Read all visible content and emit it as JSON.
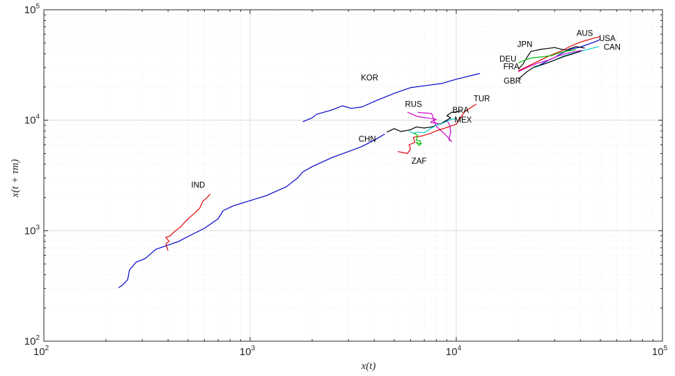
{
  "chart_data": {
    "type": "line",
    "xscale": "log",
    "yscale": "log",
    "xlim": [
      100,
      100000
    ],
    "ylim": [
      100,
      100000
    ],
    "grid": true,
    "minor_grid": true,
    "xlabel": "x(t)",
    "ylabel": "x(t + τm)",
    "x_ticks": [
      {
        "base": "10",
        "exp": "2",
        "value": 100
      },
      {
        "base": "10",
        "exp": "3",
        "value": 1000
      },
      {
        "base": "10",
        "exp": "4",
        "value": 10000
      },
      {
        "base": "10",
        "exp": "5",
        "value": 100000
      }
    ],
    "y_ticks": [
      {
        "base": "10",
        "exp": "2",
        "value": 100
      },
      {
        "base": "10",
        "exp": "3",
        "value": 1000
      },
      {
        "base": "10",
        "exp": "4",
        "value": 10000
      },
      {
        "base": "10",
        "exp": "5",
        "value": 100000
      }
    ],
    "series": [
      {
        "name": "CHN",
        "color": "#0000cc",
        "label_at": [
          3700,
          6400
        ],
        "points": [
          [
            230,
            305
          ],
          [
            240,
            320
          ],
          [
            255,
            360
          ],
          [
            260,
            440
          ],
          [
            280,
            520
          ],
          [
            310,
            560
          ],
          [
            350,
            680
          ],
          [
            400,
            740
          ],
          [
            450,
            800
          ],
          [
            520,
            920
          ],
          [
            600,
            1050
          ],
          [
            700,
            1280
          ],
          [
            740,
            1520
          ],
          [
            830,
            1680
          ],
          [
            1000,
            1870
          ],
          [
            1200,
            2080
          ],
          [
            1500,
            2500
          ],
          [
            1700,
            3000
          ],
          [
            1800,
            3400
          ],
          [
            2000,
            3800
          ],
          [
            2500,
            4600
          ],
          [
            3000,
            5200
          ],
          [
            3500,
            5800
          ],
          [
            4000,
            6600
          ],
          [
            4500,
            7500
          ]
        ]
      },
      {
        "name": "KOR",
        "color": "#0000cc",
        "label_at": [
          3800,
          23000
        ],
        "points": [
          [
            1800,
            9700
          ],
          [
            2000,
            10500
          ],
          [
            2100,
            11300
          ],
          [
            2500,
            12400
          ],
          [
            2800,
            13500
          ],
          [
            3100,
            12800
          ],
          [
            3500,
            13200
          ],
          [
            4000,
            14800
          ],
          [
            5000,
            17500
          ],
          [
            6000,
            19700
          ],
          [
            7000,
            20500
          ],
          [
            8500,
            21500
          ],
          [
            10000,
            23500
          ],
          [
            13000,
            26500
          ]
        ]
      },
      {
        "name": "IND",
        "color": "#dd0000",
        "label_at": [
          560,
          2450
        ],
        "points": [
          [
            400,
            660
          ],
          [
            390,
            760
          ],
          [
            405,
            800
          ],
          [
            390,
            870
          ],
          [
            410,
            900
          ],
          [
            430,
            980
          ],
          [
            460,
            1080
          ],
          [
            480,
            1180
          ],
          [
            510,
            1320
          ],
          [
            540,
            1450
          ],
          [
            570,
            1600
          ],
          [
            590,
            1850
          ],
          [
            620,
            2000
          ],
          [
            640,
            2150
          ]
        ]
      },
      {
        "name": "RUS",
        "color": "#cc00cc",
        "label_at": [
          6200,
          13200
        ],
        "points": [
          [
            5800,
            11800
          ],
          [
            6500,
            10800
          ],
          [
            7200,
            10500
          ],
          [
            8000,
            10200
          ],
          [
            7500,
            9600
          ],
          [
            8400,
            9200
          ],
          [
            9000,
            10000
          ],
          [
            9300,
            9000
          ],
          [
            9400,
            7800
          ],
          [
            9200,
            6700
          ],
          [
            9500,
            6400
          ],
          [
            8800,
            7500
          ],
          [
            8000,
            8800
          ],
          [
            7600,
            11500
          ],
          [
            6500,
            11800
          ]
        ]
      },
      {
        "name": "TUR",
        "color": "#dd0000",
        "label_at": [
          13300,
          14800
        ],
        "points": [
          [
            5200,
            5200
          ],
          [
            5800,
            5000
          ],
          [
            6000,
            5500
          ],
          [
            5900,
            6000
          ],
          [
            6300,
            6300
          ],
          [
            6200,
            7000
          ],
          [
            6800,
            7200
          ],
          [
            7500,
            7600
          ],
          [
            8000,
            8000
          ],
          [
            9000,
            8600
          ],
          [
            10000,
            9200
          ],
          [
            10500,
            10500
          ],
          [
            11000,
            12000
          ],
          [
            12500,
            14000
          ]
        ]
      },
      {
        "name": "BRA",
        "color": "#000000",
        "label_at": [
          10500,
          11700
        ],
        "points": [
          [
            4600,
            7800
          ],
          [
            5000,
            8400
          ],
          [
            5400,
            7900
          ],
          [
            6000,
            8200
          ],
          [
            6400,
            8700
          ],
          [
            7000,
            8500
          ],
          [
            7600,
            8700
          ],
          [
            8500,
            9400
          ],
          [
            9400,
            10500
          ],
          [
            9000,
            11000
          ],
          [
            9500,
            11800
          ],
          [
            10500,
            12000
          ]
        ]
      },
      {
        "name": "MEX",
        "color": "#00cccc",
        "label_at": [
          10800,
          9500
        ],
        "points": [
          [
            5900,
            8000
          ],
          [
            6200,
            7600
          ],
          [
            6500,
            7800
          ],
          [
            7000,
            7700
          ],
          [
            7500,
            8400
          ],
          [
            8000,
            9000
          ],
          [
            8700,
            9500
          ],
          [
            9500,
            10200
          ],
          [
            10000,
            10300
          ]
        ]
      },
      {
        "name": "ZAF",
        "color": "#00bb00",
        "label_at": [
          6600,
          4050
        ],
        "points": [
          [
            6200,
            7700
          ],
          [
            6500,
            7300
          ],
          [
            6400,
            6600
          ],
          [
            6700,
            6500
          ],
          [
            6700,
            6100
          ],
          [
            6400,
            6300
          ],
          [
            6600,
            5900
          ],
          [
            6800,
            6200
          ]
        ]
      },
      {
        "name": "AUS",
        "color": "#dd0000",
        "label_at": [
          42000,
          58000
        ],
        "points": [
          [
            20000,
            28000
          ],
          [
            24000,
            33000
          ],
          [
            28000,
            38000
          ],
          [
            32000,
            42000
          ],
          [
            36000,
            47000
          ],
          [
            40000,
            51000
          ],
          [
            46000,
            55000
          ],
          [
            50000,
            57000
          ]
        ]
      },
      {
        "name": "USA",
        "color": "#0000cc",
        "label_at": [
          54000,
          52000
        ],
        "points": [
          [
            25000,
            31000
          ],
          [
            28000,
            35000
          ],
          [
            30000,
            37000
          ],
          [
            33000,
            41000
          ],
          [
            36000,
            44000
          ],
          [
            40000,
            46000
          ],
          [
            44000,
            49000
          ],
          [
            48000,
            52000
          ],
          [
            50000,
            54000
          ]
        ]
      },
      {
        "name": "CAN",
        "color": "#00cccc",
        "label_at": [
          57000,
          43500
        ],
        "points": [
          [
            24000,
            30000
          ],
          [
            27000,
            32500
          ],
          [
            30000,
            35000
          ],
          [
            33000,
            38000
          ],
          [
            36000,
            40000
          ],
          [
            40000,
            42000
          ],
          [
            45000,
            44500
          ],
          [
            49000,
            46500
          ]
        ]
      },
      {
        "name": "JPN",
        "color": "#000000",
        "label_at": [
          21500,
          46000
        ],
        "points": [
          [
            20000,
            29000
          ],
          [
            21000,
            32000
          ],
          [
            22000,
            37000
          ],
          [
            23000,
            42000
          ],
          [
            26000,
            44000
          ],
          [
            30000,
            45500
          ],
          [
            34000,
            43000
          ],
          [
            38000,
            46500
          ],
          [
            42000,
            45000
          ]
        ]
      },
      {
        "name": "DEU",
        "color": "#00bb00",
        "label_at": [
          17800,
          34000
        ],
        "points": [
          [
            20000,
            33000
          ],
          [
            21500,
            35000
          ],
          [
            23000,
            36500
          ],
          [
            26000,
            37500
          ],
          [
            29000,
            38500
          ],
          [
            32000,
            41000
          ],
          [
            35000,
            42500
          ],
          [
            38000,
            43500
          ]
        ]
      },
      {
        "name": "FRA",
        "color": "#cc00cc",
        "label_at": [
          18500,
          29000
        ],
        "points": [
          [
            20000,
            27500
          ],
          [
            22000,
            30000
          ],
          [
            25000,
            33000
          ],
          [
            28000,
            35000
          ],
          [
            31000,
            38000
          ],
          [
            34000,
            40000
          ],
          [
            37000,
            41500
          ],
          [
            41000,
            43000
          ]
        ]
      },
      {
        "name": "GBR",
        "color": "#000000",
        "label_at": [
          18700,
          21500
        ],
        "points": [
          [
            20000,
            23500
          ],
          [
            21000,
            25500
          ],
          [
            22000,
            27500
          ],
          [
            24000,
            30500
          ],
          [
            27000,
            32500
          ],
          [
            30000,
            35000
          ],
          [
            33000,
            37500
          ],
          [
            37000,
            40000
          ],
          [
            40000,
            42000
          ]
        ]
      }
    ]
  }
}
